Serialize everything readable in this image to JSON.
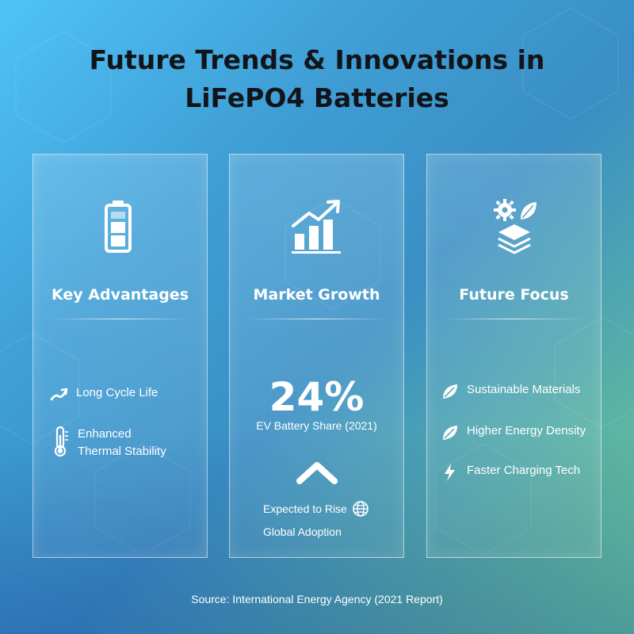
{
  "title_line1": "Future Trends & Innovations in",
  "title_line2": "LiFePO4 Batteries",
  "cards": [
    {
      "heading": "Key Advantages",
      "icon": "battery-icon",
      "features": [
        {
          "icon": "trend-up-icon",
          "lines": [
            "Long Cycle Life"
          ]
        },
        {
          "icon": "thermometer-icon",
          "lines": [
            "Enhanced",
            "Thermal Stability"
          ]
        }
      ]
    },
    {
      "heading": "Market Growth",
      "icon": "growth-chart-icon",
      "big_value": "24%",
      "big_label": "EV Battery Share (2021)",
      "trend_icon": "chevron-up-icon",
      "rise_label": "Expected to Rise",
      "rise_icon": "globe-icon",
      "adoption_label": "Global Adoption"
    },
    {
      "heading": "Future Focus",
      "icon": "gear-leaf-layers-icon",
      "features": [
        {
          "icon": "leaf-icon",
          "lines": [
            "Sustainable Materials"
          ]
        },
        {
          "icon": "leaf-icon",
          "lines": [
            "Higher Energy Density"
          ]
        },
        {
          "icon": "lightning-icon",
          "lines": [
            "Faster Charging Tech"
          ]
        }
      ]
    }
  ],
  "source": "Source: International Energy Agency (2021 Report)",
  "colors": {
    "title": "#111418",
    "text": "#ffffff"
  }
}
